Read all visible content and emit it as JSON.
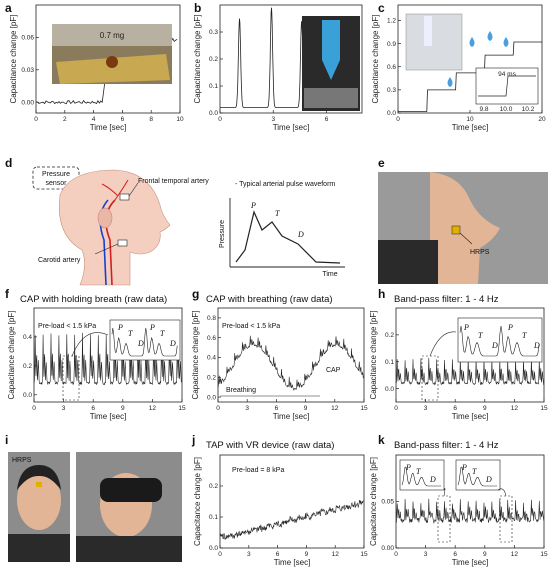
{
  "panels": {
    "a": "a",
    "b": "b",
    "c": "c",
    "d": "d",
    "e": "e",
    "f": "f",
    "g": "g",
    "h": "h",
    "i": "i",
    "j": "j",
    "k": "k"
  },
  "labels": {
    "cap_pf": "Capacitance change [pF]",
    "time_sec": "Time [sec]",
    "mass": "0.7 mg",
    "ms94": "94 ms",
    "pressure_sensor": "Pressure sensor",
    "frontal_artery": "Frontal temporal artery",
    "carotid_artery": "Carotid artery",
    "waveform_title": "- Typical arterial pulse waveform",
    "pressure": "Pressure",
    "time": "Time",
    "P": "P",
    "T": "T",
    "D": "D",
    "hrps": "HRPS",
    "f_title": "CAP with holding breath (raw data)",
    "g_title": "CAP with breathing (raw data)",
    "h_title": "Band-pass filter: 1 - 4 Hz",
    "j_title": "TAP with VR device (raw data)",
    "k_title": "Band-pass filter: 1 - 4 Hz",
    "preload_low": "Pre-load < 1.5 kPa",
    "preload_8": "Pre-load = 8 kPa",
    "breathing": "Breathing",
    "cap": "CAP"
  },
  "chart_data": [
    {
      "panel": "a",
      "type": "line",
      "xlim": [
        0,
        10
      ],
      "ylim": [
        -0.01,
        0.09
      ],
      "xticks": [
        "0",
        "2",
        "4",
        "6",
        "8",
        "10"
      ],
      "yticks": [
        "0.00",
        "0.03",
        "0.06"
      ],
      "x": [
        0,
        1,
        2,
        3,
        4,
        4.6,
        5.1,
        6,
        7,
        8,
        9,
        9.8
      ],
      "y": [
        0.0,
        0.0,
        0.001,
        0.001,
        0.0,
        0.0,
        0.052,
        0.055,
        0.057,
        0.058,
        0.058,
        0.058
      ]
    },
    {
      "panel": "b",
      "type": "line",
      "xlim": [
        0,
        8
      ],
      "ylim": [
        0,
        0.4
      ],
      "xticks": [
        "0",
        "3",
        "6"
      ],
      "yticks": [
        "0.0",
        "0.1",
        "0.2",
        "0.3"
      ],
      "peaks_x": [
        1.1,
        2.9,
        4.6,
        6.3
      ],
      "peaks_y": [
        0.33,
        0.37,
        0.32,
        0.31
      ]
    },
    {
      "panel": "c",
      "type": "line",
      "xlim": [
        0,
        20
      ],
      "ylim": [
        0,
        1.4
      ],
      "xticks": [
        "0",
        "10",
        "20"
      ],
      "yticks": [
        "0.0",
        "0.3",
        "0.6",
        "0.9",
        "1.2"
      ],
      "x": [
        0,
        4,
        4.1,
        8,
        8.1,
        12,
        12.1,
        16,
        16.1,
        20
      ],
      "y": [
        0.02,
        0.02,
        0.3,
        0.3,
        0.52,
        0.52,
        0.75,
        0.75,
        0.92,
        0.92
      ],
      "inset": {
        "xticks": [
          "9.8",
          "10.0",
          "10.2"
        ]
      }
    },
    {
      "panel": "f",
      "type": "line",
      "xlim": [
        0,
        15
      ],
      "ylim": [
        -0.05,
        0.6
      ],
      "xticks": [
        "0",
        "3",
        "6",
        "9",
        "12",
        "15"
      ],
      "yticks": [
        "0.0",
        "0.2",
        "0.4"
      ]
    },
    {
      "panel": "g",
      "type": "line",
      "xlim": [
        0,
        15
      ],
      "ylim": [
        -0.05,
        0.9
      ],
      "xticks": [
        "0",
        "3",
        "6",
        "9",
        "12",
        "15"
      ],
      "yticks": [
        "0.0",
        "0.2",
        "0.4",
        "0.6",
        "0.8"
      ]
    },
    {
      "panel": "h",
      "type": "line",
      "xlim": [
        0,
        15
      ],
      "ylim": [
        -0.05,
        0.3
      ],
      "xticks": [
        "0",
        "3",
        "6",
        "9",
        "12",
        "15"
      ],
      "yticks": [
        "0.0",
        "0.1",
        "0.2"
      ]
    },
    {
      "panel": "j",
      "type": "line",
      "xlim": [
        0,
        15
      ],
      "ylim": [
        0,
        0.3
      ],
      "xticks": [
        "0",
        "3",
        "6",
        "9",
        "12",
        "15"
      ],
      "yticks": [
        "0.0",
        "0.1",
        "0.2"
      ]
    },
    {
      "panel": "k",
      "type": "line",
      "xlim": [
        0,
        15
      ],
      "ylim": [
        0,
        0.1
      ],
      "xticks": [
        "0",
        "3",
        "6",
        "9",
        "12",
        "15"
      ],
      "yticks": [
        "0.00",
        "0.05"
      ]
    }
  ]
}
